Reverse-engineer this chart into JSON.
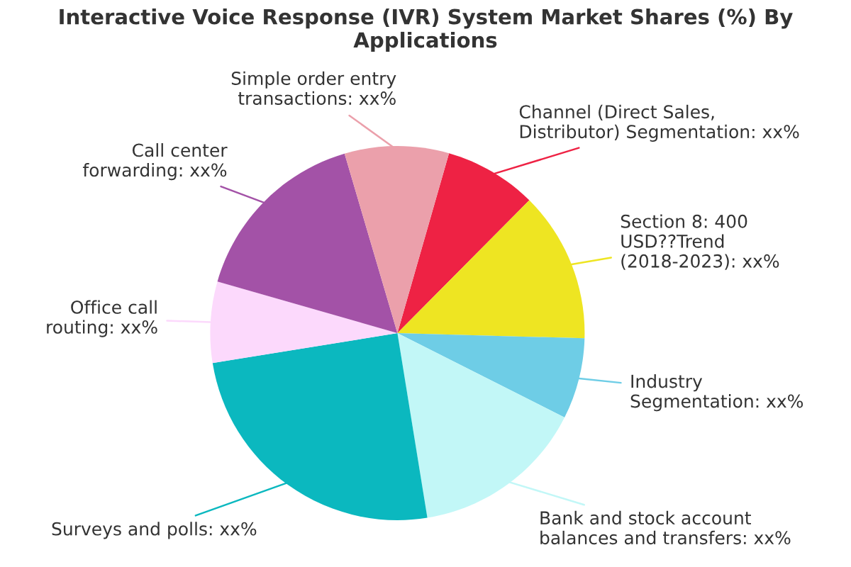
{
  "chart_data": {
    "type": "pie",
    "title": "Interactive Voice Response (IVR) System Market Shares (%) By Applications",
    "categories": [
      "Channel (Direct Sales,\nDistributor) Segmentation",
      "Section 8: 400\nUSD??Trend\n(2018-2023)",
      "Industry\nSegmentation",
      "Bank and stock account\nbalances and transfers",
      "Surveys and polls",
      "Office call\nrouting",
      "Call center\nforwarding",
      "Simple order entry\ntransactions"
    ],
    "values": [
      8,
      13,
      7,
      15,
      25,
      7,
      16,
      9
    ],
    "value_labels": [
      "xx%",
      "xx%",
      "xx%",
      "xx%",
      "xx%",
      "xx%",
      "xx%",
      "xx%"
    ],
    "colors": [
      "#ee2244",
      "#eee522",
      "#6ecde6",
      "#c2f7f7",
      "#0bb8bf",
      "#fcd9fc",
      "#a352a7",
      "#eba0ab"
    ]
  }
}
